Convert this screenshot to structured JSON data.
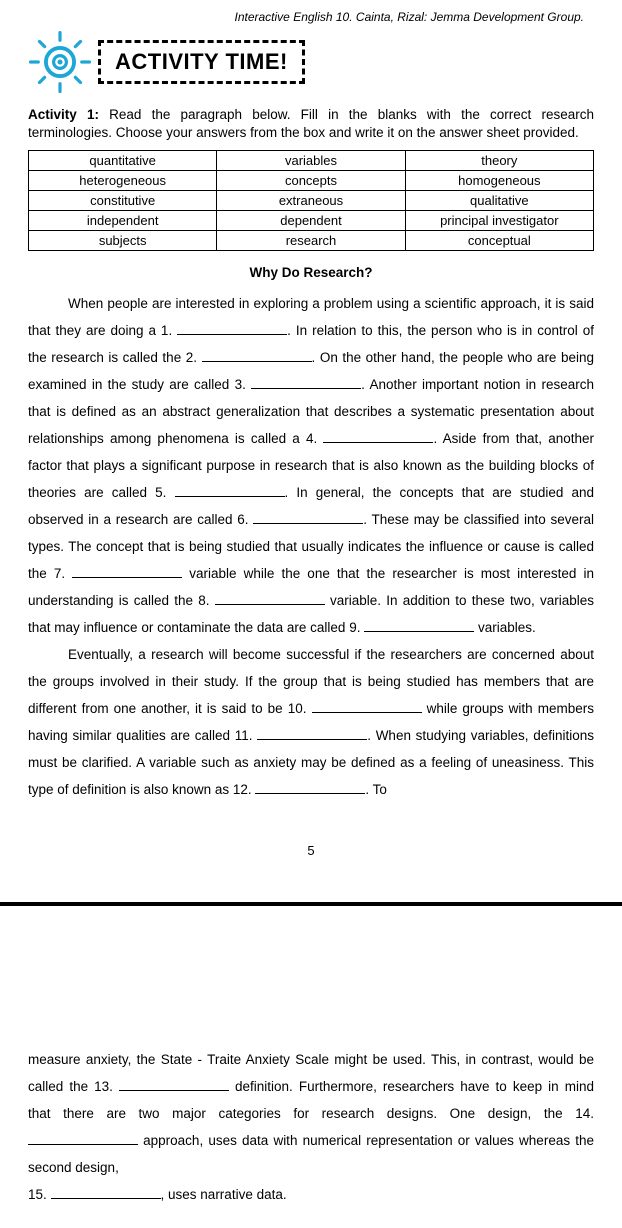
{
  "top_reference": "Interactive English 10. Cainta, Rizal: Jemma Development Group.",
  "activity_title": "ACTIVITY TIME!",
  "activity_label": "Activity 1:",
  "instructions": "Read the paragraph below. Fill in the blanks with the correct research terminologies. Choose your answers from the box and write it on the answer sheet provided.",
  "wordbox": [
    [
      "quantitative",
      "variables",
      "theory"
    ],
    [
      "heterogeneous",
      "concepts",
      "homogeneous"
    ],
    [
      "constitutive",
      "extraneous",
      "qualitative"
    ],
    [
      "independent",
      "dependent",
      "principal investigator"
    ],
    [
      "subjects",
      "research",
      "conceptual"
    ]
  ],
  "subtitle": "Why Do Research?",
  "para1_parts": [
    "When people are interested in exploring a problem using a scientific approach, it is said that they are doing a 1. ",
    ". In relation to this, the person who is in control of the research is called the 2. ",
    ". On the other hand, the people who are being examined in the study are called 3. ",
    ". Another important notion in research that is defined as an abstract generalization that describes a systematic presentation about relationships among phenomena is called a 4. ",
    ". Aside from that, another factor that plays a significant purpose in research that is also known as the building blocks of theories are called 5. ",
    ". In general, the concepts that are studied and observed in a research are called 6. ",
    ". These may be classified into several types. The concept that is being studied that usually indicates the influence or cause is called the 7. ",
    " variable while the one that the researcher is most interested in understanding is called the 8. ",
    " variable. In addition to these two, variables that may influence or contaminate the data are called 9. ",
    " variables."
  ],
  "para2_parts": [
    "Eventually, a research will become successful if the researchers are concerned about the groups involved in their study. If the group that is being studied has members that are different from one another, it is said to be 10. ",
    " while groups with members having similar qualities are called 11. ",
    ". When studying variables, definitions must be clarified. A variable such as anxiety may be defined as a feeling of uneasiness. This type of definition is also known as 12. ",
    ". To"
  ],
  "page_number": "5",
  "page2_parts": [
    "measure anxiety, the State - Traite Anxiety Scale might be used. This, in contrast, would be called the 13. ",
    " definition. Furthermore, researchers have to keep in mind that there are two major categories for research designs. One design, the 14. ",
    " approach, uses data with numerical representation or values whereas  the second design,"
  ],
  "page2_line15a": "15. ",
  "page2_line15b": ", uses narrative data."
}
